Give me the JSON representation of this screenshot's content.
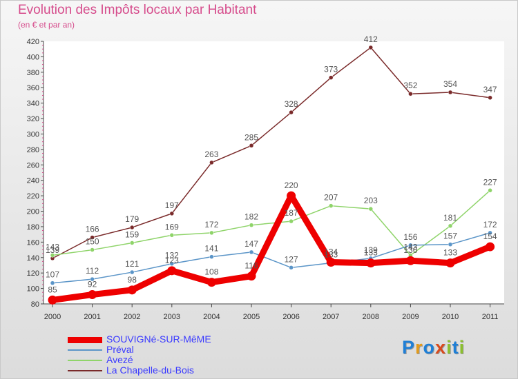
{
  "title": "Evolution des Impôts locaux par Habitant",
  "subtitle": "(en € et par an)",
  "logo": {
    "text": "Proxiti",
    "letter_colors": [
      "#1f7fd6",
      "#e39b1b",
      "#1f7fd6",
      "#d94a1c",
      "#8bbf2f",
      "#1f7fd6",
      "#8bbf2f"
    ]
  },
  "chart_data": {
    "type": "line",
    "x": [
      "2000",
      "2001",
      "2002",
      "2003",
      "2004",
      "2005",
      "2006",
      "2007",
      "2008",
      "2009",
      "2010",
      "2011"
    ],
    "ylim": [
      80,
      420
    ],
    "yticks": [
      80,
      100,
      120,
      140,
      160,
      180,
      200,
      220,
      240,
      260,
      280,
      300,
      320,
      340,
      360,
      380,
      400,
      420
    ],
    "grid": false,
    "legend_position": "bottom-left",
    "series": [
      {
        "name": "SOUVIGNé-SUR-MêME",
        "color": "#ee0000",
        "label_color": "#555555",
        "values": [
          85,
          92,
          98,
          123,
          108,
          116,
          220,
          134,
          133,
          136,
          133,
          154
        ],
        "labels": [
          "85",
          "92",
          "98",
          "123",
          "108",
          "116",
          "220",
          "134",
          "133",
          "136",
          "133",
          "154"
        ]
      },
      {
        "name": "Préval",
        "color": "#5b95c8",
        "label_color": "#555555",
        "values": [
          107,
          112,
          121,
          132,
          141,
          147,
          127,
          133,
          139,
          156,
          157,
          172
        ],
        "labels": [
          "107",
          "112",
          "121",
          "132",
          "141",
          "147",
          "127",
          "133",
          "139",
          "156",
          "157",
          "172"
        ]
      },
      {
        "name": "Avezé",
        "color": "#8fd46a",
        "label_color": "#555555",
        "values": [
          143,
          150,
          159,
          169,
          172,
          182,
          187,
          207,
          203,
          143,
          181,
          227
        ],
        "labels": [
          "143",
          "150",
          "159",
          "169",
          "172",
          "182",
          "187",
          "207",
          "203",
          "143",
          "181",
          "227"
        ]
      },
      {
        "name": "La Chapelle-du-Bois",
        "color": "#7a2a2a",
        "label_color": "#555555",
        "values": [
          139,
          166,
          179,
          197,
          263,
          285,
          328,
          373,
          412,
          352,
          354,
          347
        ],
        "labels": [
          "139",
          "166",
          "179",
          "197",
          "263",
          "285",
          "328",
          "373",
          "412",
          "352",
          "354",
          "347"
        ]
      }
    ],
    "legend_label_colors": [
      "#3a3aff",
      "#3a3aff",
      "#3a3aff",
      "#3a3aff"
    ]
  }
}
